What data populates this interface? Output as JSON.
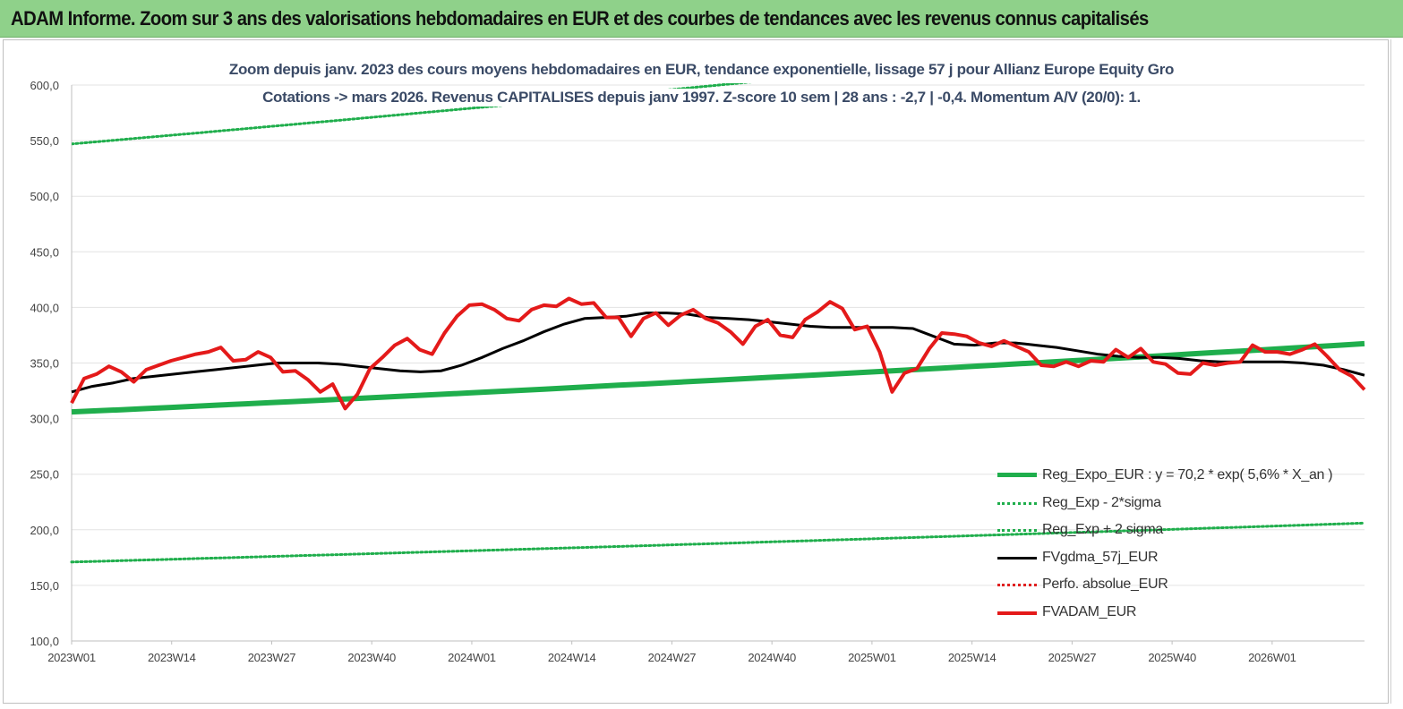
{
  "banner": {
    "title": "ADAM Informe. Zoom sur 3 ans des valorisations hebdomadaires en EUR et des courbes de tendances avec les revenus connus capitalisés"
  },
  "chart_data": {
    "type": "line",
    "title_line1": "Zoom depuis janv.  2023 des cours moyens  hebdomadaires en EUR, tendance exponentielle, lissage 57 j pour Allianz Europe Equity Gro",
    "title_line2": "Cotations -> mars 2026. Revenus CAPITALISES depuis janv 1997.  Z-score 10 sem | 28 ans : -2,7  | -0,4. Momentum A/V (20/0): 1.",
    "ylim": [
      100,
      600
    ],
    "y_ticks": [
      "100,0",
      "150,0",
      "200,0",
      "250,0",
      "300,0",
      "350,0",
      "400,0",
      "450,0",
      "500,0",
      "550,0",
      "600,0"
    ],
    "x_ticks": [
      "2023W01",
      "2023W14",
      "2023W27",
      "2023W40",
      "2024W01",
      "2024W14",
      "2024W27",
      "2024W40",
      "2025W01",
      "2025W14",
      "2025W27",
      "2025W40",
      "2026W01"
    ],
    "grid": "horizontal",
    "legend_position": "bottom-right",
    "n_weeks": 168,
    "series": [
      {
        "name": "Reg_Expo_EUR : y = 70,2 * exp( 5,6% *  X_an )",
        "style": "solid-thick",
        "color": "#1fae4c",
        "values": [
          306.0,
          307.0,
          308.0,
          309.0,
          310.1,
          311.1,
          312.2,
          313.3,
          314.3,
          315.4,
          316.5,
          317.6,
          318.7,
          319.8,
          320.9,
          322.0,
          323.1,
          324.2,
          325.4,
          326.5,
          327.6,
          328.8,
          330.0,
          331.1,
          332.3,
          333.5,
          334.6,
          335.8,
          337.0,
          338.2,
          339.4,
          340.6,
          341.8,
          343.0,
          344.2,
          345.4,
          346.7,
          347.9,
          349.2,
          350.4,
          351.7,
          352.9,
          354.2,
          355.5,
          356.8,
          358.1,
          359.4,
          360.7,
          362.0,
          363.4,
          364.7,
          366.0,
          367.4
        ],
        "x_week_indexes_step": 3.2
      },
      {
        "name": "Reg_Exp - 2*sigma",
        "style": "dotted",
        "color": "#1fae4c",
        "start": 171,
        "end": 206
      },
      {
        "name": "Reg_Exp + 2 sigma",
        "style": "dotted",
        "color": "#1fae4c",
        "start": 547,
        "end": 658
      },
      {
        "name": "FVgdma_57j_EUR",
        "style": "solid",
        "color": "#000000",
        "values": [
          324,
          329,
          332,
          336,
          338,
          340,
          342,
          344,
          346,
          348,
          350,
          350,
          350,
          349,
          347,
          345,
          343,
          342,
          343,
          348,
          355,
          363,
          370,
          378,
          385,
          390,
          391,
          392,
          395,
          395,
          394,
          391,
          390,
          389,
          387,
          385,
          383,
          382,
          382,
          382,
          382,
          381,
          374,
          367,
          366,
          368,
          368,
          366,
          364,
          361,
          358,
          356,
          355,
          355,
          354,
          352,
          351,
          351,
          351,
          351,
          350,
          348,
          344,
          339
        ]
      },
      {
        "name": "Perfo. absolue_EUR",
        "style": "dotted",
        "color": "#e02020",
        "values": []
      },
      {
        "name": "FVADAM_EUR",
        "style": "solid-thick",
        "color": "#e41a1a",
        "values": [
          314,
          336,
          340,
          347,
          342,
          333,
          344,
          348,
          352,
          355,
          358,
          360,
          364,
          352,
          353,
          360,
          355,
          342,
          343,
          335,
          324,
          331,
          309,
          322,
          345,
          355,
          366,
          372,
          362,
          358,
          377,
          392,
          402,
          403,
          398,
          390,
          388,
          398,
          402,
          401,
          408,
          403,
          404,
          391,
          391,
          374,
          390,
          395,
          384,
          393,
          398,
          390,
          386,
          378,
          367,
          383,
          389,
          375,
          373,
          389,
          396,
          405,
          399,
          380,
          383,
          360,
          324,
          341,
          345,
          363,
          377,
          376,
          374,
          368,
          365,
          370,
          365,
          360,
          348,
          347,
          351,
          347,
          352,
          351,
          362,
          355,
          363,
          351,
          349,
          341,
          340,
          350,
          348,
          350,
          351,
          366,
          360,
          360,
          358,
          362,
          367,
          356,
          344,
          338,
          326
        ]
      }
    ]
  }
}
